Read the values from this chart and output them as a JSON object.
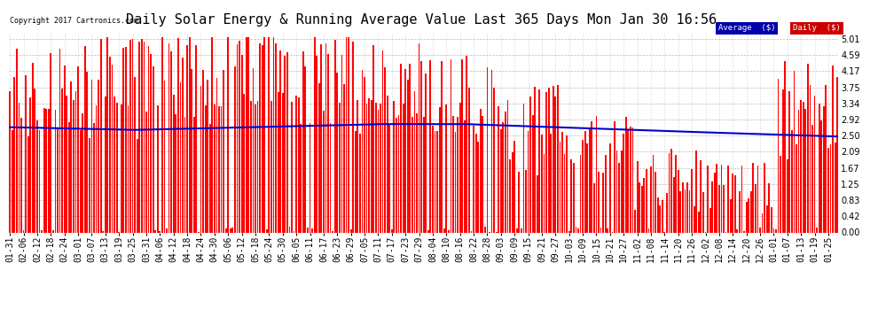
{
  "title": "Daily Solar Energy & Running Average Value Last 365 Days Mon Jan 30 16:56",
  "copyright": "Copyright 2017 Cartronics.com",
  "legend_avg": "Average  ($)",
  "legend_daily": "Daily  ($)",
  "yticks": [
    0.0,
    0.42,
    0.83,
    1.25,
    1.67,
    2.09,
    2.5,
    2.92,
    3.34,
    3.75,
    4.17,
    4.59,
    5.01
  ],
  "ylim": [
    0.0,
    5.15
  ],
  "bar_color": "#FF0000",
  "avg_color": "#0000CC",
  "background_color": "#FFFFFF",
  "grid_color": "#AAAAAA",
  "title_fontsize": 11,
  "tick_fontsize": 7,
  "bar_width": 0.7,
  "avg_linewidth": 1.5,
  "x_tick_every": 6
}
